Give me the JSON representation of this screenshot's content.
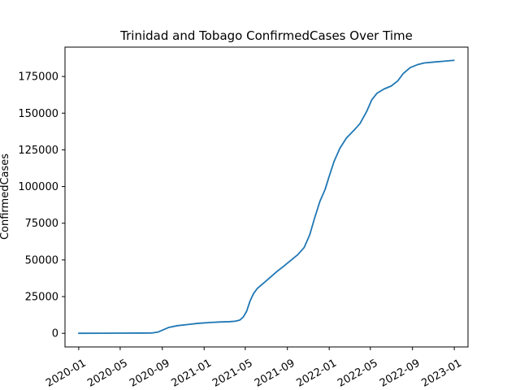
{
  "chart_data": {
    "type": "line",
    "title": "Trinidad and Tobago  ConfirmedCases Over Time",
    "xlabel": "",
    "ylabel": "ConfirmedCases",
    "xlim": [
      "2019-11-22",
      "2023-02-10"
    ],
    "ylim": [
      -9300,
      195000
    ],
    "grid": false,
    "x_ticks": [
      "2020-01",
      "2020-05",
      "2020-09",
      "2021-01",
      "2021-05",
      "2021-09",
      "2022-01",
      "2022-05",
      "2022-09",
      "2023-01"
    ],
    "x_tick_dates": [
      "2020-01-01",
      "2020-05-01",
      "2020-09-01",
      "2021-01-01",
      "2021-05-01",
      "2021-09-01",
      "2022-01-01",
      "2022-05-01",
      "2022-09-01",
      "2023-01-01"
    ],
    "y_ticks": [
      0,
      25000,
      50000,
      75000,
      100000,
      125000,
      150000,
      175000
    ],
    "y_tick_labels": [
      "0",
      "25000",
      "50000",
      "75000",
      "100000",
      "125000",
      "150000",
      "175000"
    ],
    "series": [
      {
        "color": "#1f77b4",
        "points": [
          [
            "2020-01-01",
            0
          ],
          [
            "2020-03-15",
            50
          ],
          [
            "2020-05-01",
            115
          ],
          [
            "2020-07-01",
            140
          ],
          [
            "2020-08-01",
            200
          ],
          [
            "2020-08-20",
            900
          ],
          [
            "2020-09-05",
            2500
          ],
          [
            "2020-09-20",
            4000
          ],
          [
            "2020-10-15",
            5200
          ],
          [
            "2020-11-15",
            6000
          ],
          [
            "2020-12-15",
            6800
          ],
          [
            "2021-01-15",
            7300
          ],
          [
            "2021-02-15",
            7700
          ],
          [
            "2021-03-15",
            7900
          ],
          [
            "2021-04-01",
            8200
          ],
          [
            "2021-04-15",
            9000
          ],
          [
            "2021-04-25",
            11000
          ],
          [
            "2021-05-05",
            15000
          ],
          [
            "2021-05-15",
            22000
          ],
          [
            "2021-05-25",
            27000
          ],
          [
            "2021-06-05",
            30500
          ],
          [
            "2021-06-20",
            33500
          ],
          [
            "2021-07-10",
            37500
          ],
          [
            "2021-08-01",
            42000
          ],
          [
            "2021-08-20",
            45500
          ],
          [
            "2021-09-10",
            49500
          ],
          [
            "2021-10-01",
            53500
          ],
          [
            "2021-10-20",
            58500
          ],
          [
            "2021-11-05",
            67000
          ],
          [
            "2021-11-20",
            79000
          ],
          [
            "2021-12-05",
            90000
          ],
          [
            "2021-12-20",
            98000
          ],
          [
            "2022-01-01",
            107000
          ],
          [
            "2022-01-15",
            117000
          ],
          [
            "2022-02-01",
            126000
          ],
          [
            "2022-02-20",
            133000
          ],
          [
            "2022-03-15",
            138500
          ],
          [
            "2022-04-01",
            143000
          ],
          [
            "2022-04-20",
            151000
          ],
          [
            "2022-05-05",
            159000
          ],
          [
            "2022-05-20",
            163500
          ],
          [
            "2022-06-10",
            166500
          ],
          [
            "2022-07-01",
            168500
          ],
          [
            "2022-07-20",
            172000
          ],
          [
            "2022-08-05",
            177000
          ],
          [
            "2022-08-25",
            181000
          ],
          [
            "2022-09-15",
            183000
          ],
          [
            "2022-10-05",
            184200
          ],
          [
            "2022-11-01",
            184800
          ],
          [
            "2022-12-01",
            185400
          ],
          [
            "2022-12-31",
            186000
          ]
        ]
      }
    ]
  }
}
